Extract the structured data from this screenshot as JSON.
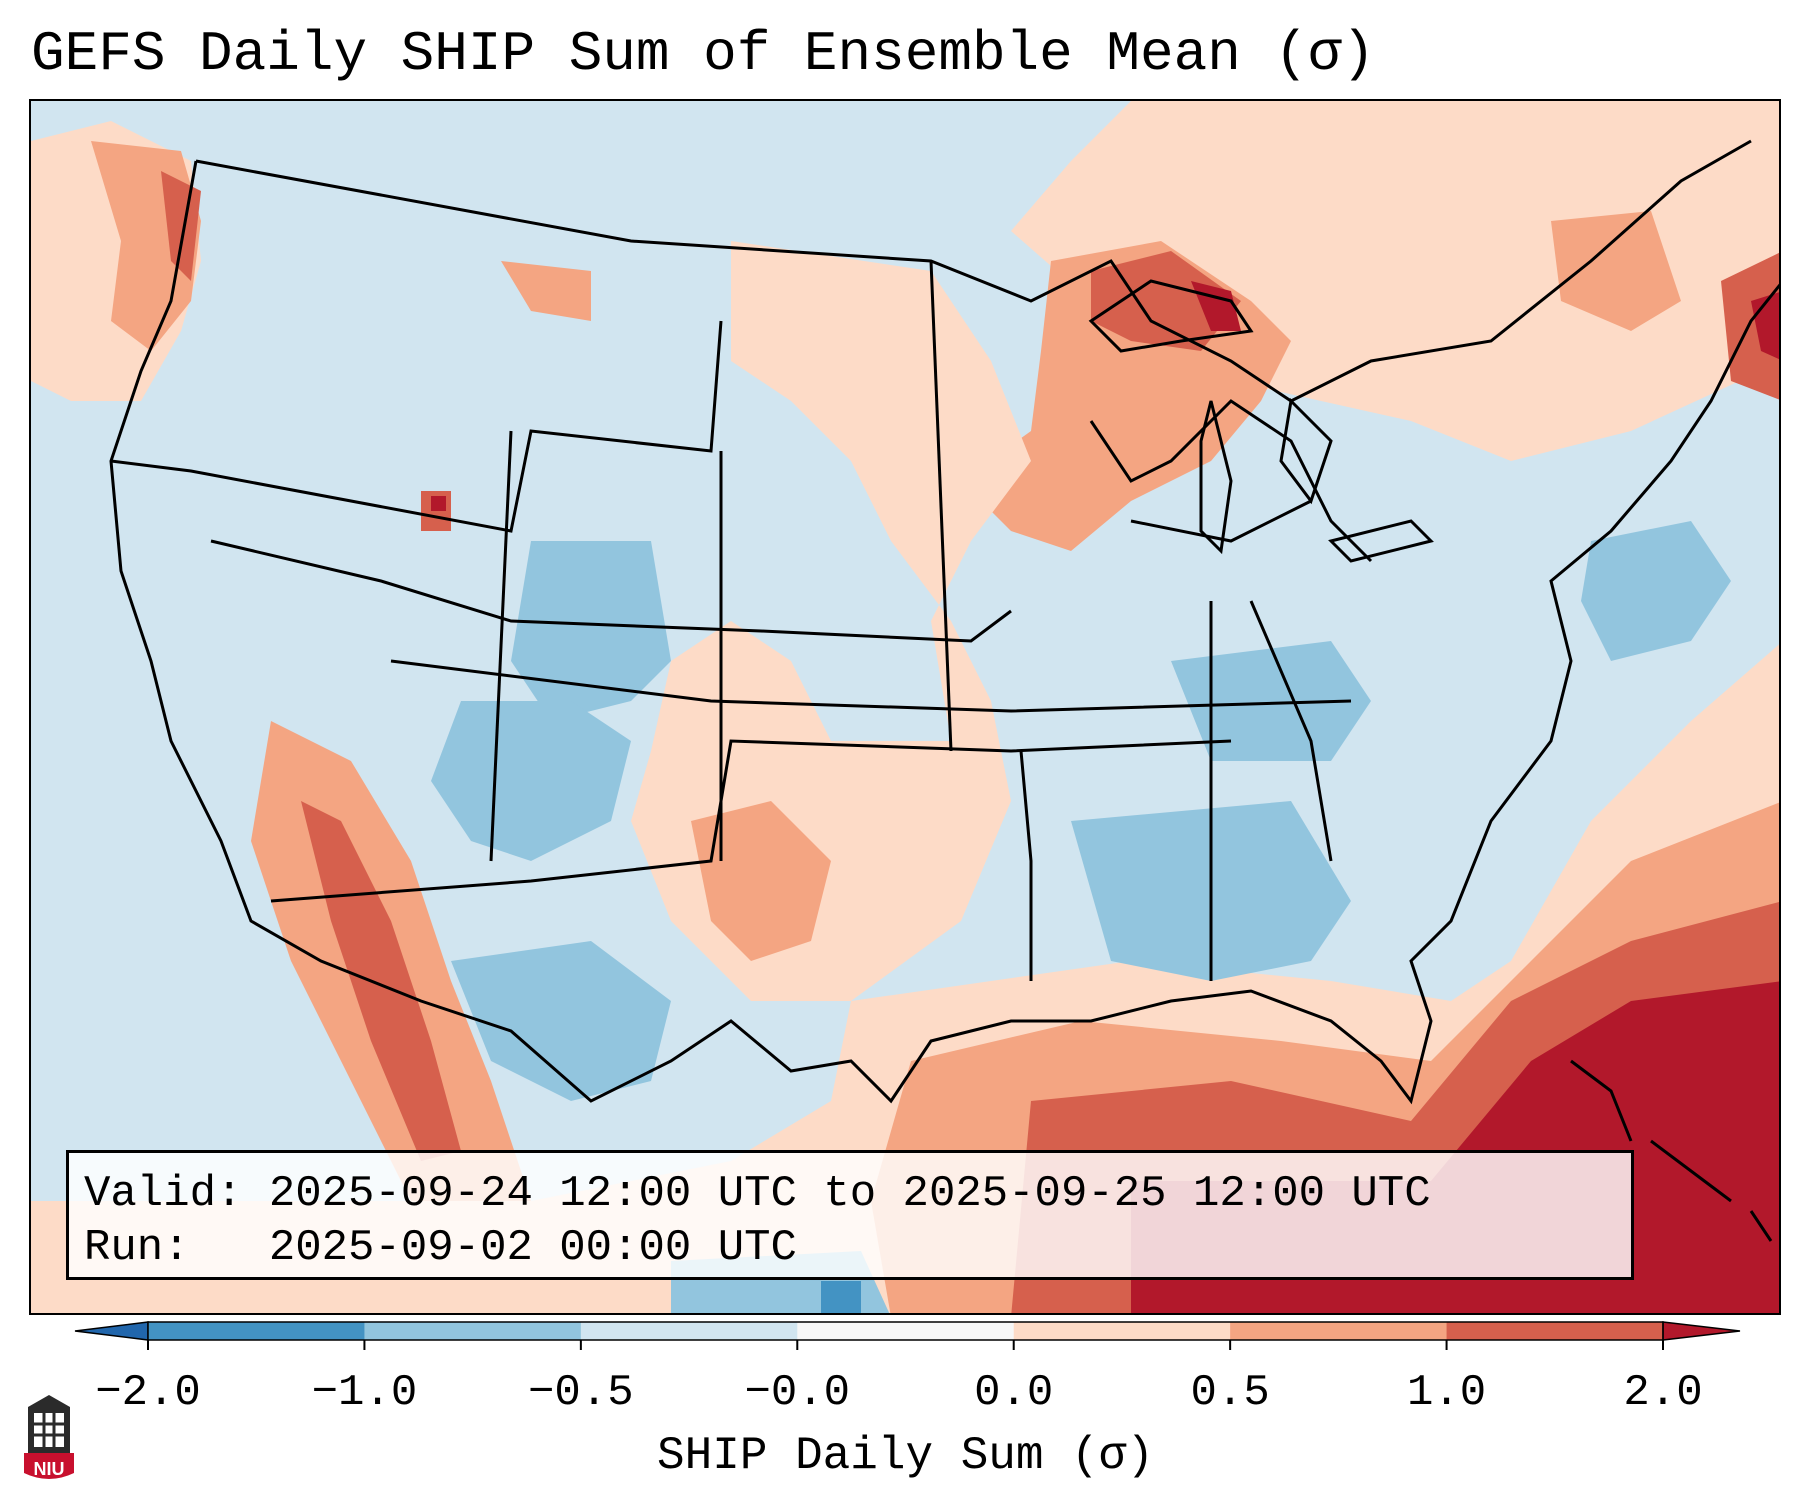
{
  "title": "GEFS Daily SHIP Sum of Ensemble Mean (σ)",
  "info": {
    "valid_line": "Valid: 2025-09-24 12:00 UTC to 2025-09-25 12:00 UTC",
    "run_line": "Run:   2025-09-02 00:00 UTC"
  },
  "colorbar": {
    "label": "SHIP Daily Sum (σ)",
    "ticks": [
      "−2.0",
      "−1.0",
      "−0.5",
      "−0.0",
      "0.0",
      "0.5",
      "1.0",
      "2.0"
    ],
    "bins": [
      {
        "range": "< -2.0",
        "color": "#2166ac"
      },
      {
        "range": "-2.0 to -1.0",
        "color": "#4393c3"
      },
      {
        "range": "-1.0 to -0.5",
        "color": "#92c5de"
      },
      {
        "range": "-0.5 to -0.0",
        "color": "#d1e5f0"
      },
      {
        "range": "-0.0 to 0.0",
        "color": "#f7f7f7"
      },
      {
        "range": "0.0 to 0.5",
        "color": "#fddbc7"
      },
      {
        "range": "0.5 to 1.0",
        "color": "#f4a582"
      },
      {
        "range": "1.0 to 2.0",
        "color": "#d6604d"
      },
      {
        "range": "> 2.0",
        "color": "#b2182b"
      }
    ]
  },
  "logo": {
    "name": "niu-logo",
    "text": "NIU",
    "color": "#c8102e"
  },
  "map": {
    "projection": "Lambert Conformal",
    "region": "Contiguous United States",
    "anomaly_areas": [
      {
        "region": "Gulf of Mexico",
        "category": "1.0 to 2.0"
      },
      {
        "region": "Bahamas / western Atlantic",
        "category": "> 2.0"
      },
      {
        "region": "Lake Superior / Upper Midwest",
        "category": "0.5 to 1.0"
      },
      {
        "region": "Pacific Northwest coast",
        "category": "0.5 to 1.0"
      },
      {
        "region": "Colorado / Four Corners",
        "category": "-1.0 to -0.5"
      },
      {
        "region": "Lower Mississippi Valley",
        "category": "-1.0 to -0.5"
      },
      {
        "region": "Gulf of Maine",
        "category": "1.0 to 2.0"
      }
    ]
  }
}
